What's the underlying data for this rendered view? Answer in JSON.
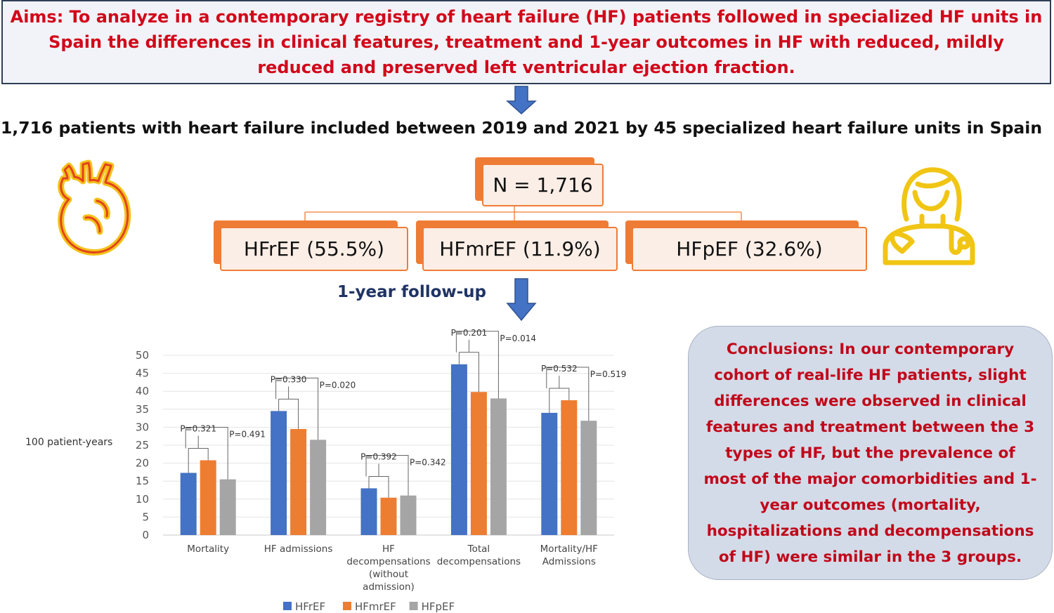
{
  "aims": "Aims: To analyze in a contemporary registry of heart failure (HF) patients followed in specialized HF units in Spain the differences in clinical features, treatment and 1-year outcomes in HF with reduced, mildly reduced and preserved left ventricular ejection fraction.",
  "subtitle": "1,716 patients with heart failure included between 2019 and 2021 by 45 specialized heart failure units in Spain",
  "total_box": "N = 1,716",
  "groups": [
    "HFrEF (55.5%)",
    "HFmrEF (11.9%)",
    "HFpEF (32.6%)"
  ],
  "followup": "1-year follow-up",
  "conclusions": "Conclusions: In our contemporary cohort of real-life HF patients, slight differences were observed in clinical features and treatment between the 3 types of HF, but the prevalence of most of the major comorbidities and 1-year outcomes (mortality, hospitalizations and decompensations of HF) were similar in the 3 groups.",
  "icons": {
    "heart": "heart-icon",
    "doctor": "doctor-icon",
    "arrow": "arrow-down-icon"
  },
  "colors": {
    "accent": "#ef7c35",
    "title_red": "#d2071a",
    "followup_blue": "#1f3364",
    "arrow_blue": "#4472c4"
  },
  "chart_data": {
    "type": "bar",
    "ylabel": "100 patient-years",
    "ylim": [
      0,
      50
    ],
    "yticks": [
      0,
      5,
      10,
      15,
      20,
      25,
      30,
      35,
      40,
      45,
      50
    ],
    "grid": true,
    "legend_position": "bottom",
    "categories": [
      [
        "Mortality"
      ],
      [
        "HF admissions"
      ],
      [
        "HF",
        "decompensations",
        "(without",
        "admission)"
      ],
      [
        "Total",
        "decompensations"
      ],
      [
        "Mortality/HF",
        "Admissions"
      ]
    ],
    "series": [
      {
        "name": "HFrEF",
        "color": "#4472c4",
        "values": [
          17.3,
          34.5,
          13.0,
          47.5,
          34.0
        ]
      },
      {
        "name": "HFmrEF",
        "color": "#ed7d31",
        "values": [
          20.8,
          29.5,
          10.4,
          39.8,
          37.5
        ]
      },
      {
        "name": "HFpEF",
        "color": "#a5a5a5",
        "values": [
          15.5,
          26.5,
          11.0,
          38.0,
          31.8
        ]
      }
    ],
    "annotations": [
      [
        "P=0.321",
        "P=0.491"
      ],
      [
        "P=0.330",
        "P=0.020"
      ],
      [
        "P=0.392",
        "P=0.342"
      ],
      [
        "P=0.201",
        "P=0.014"
      ],
      [
        "P=0.532",
        "P=0.519"
      ]
    ]
  }
}
